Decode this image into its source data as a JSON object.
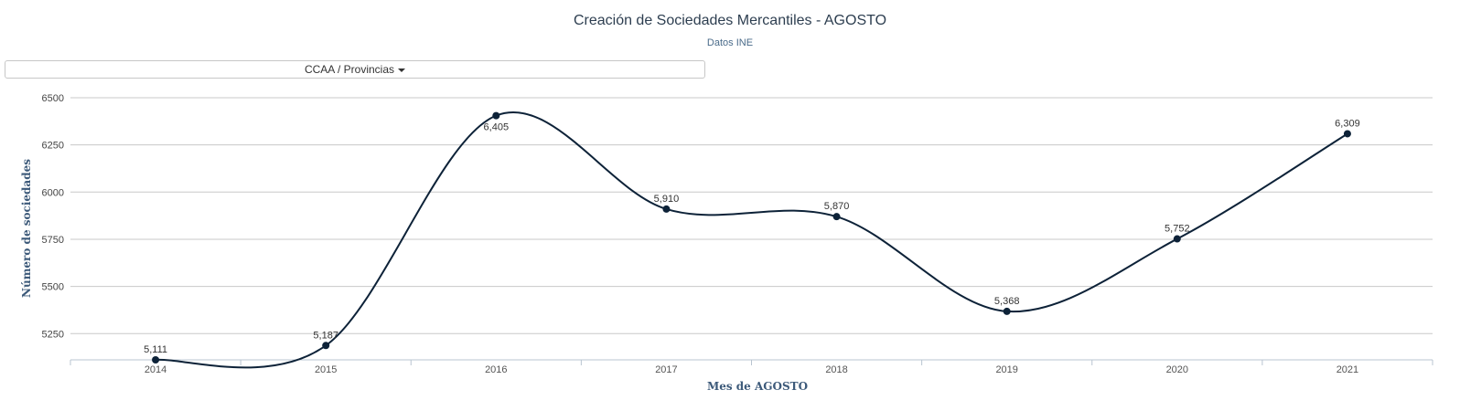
{
  "header": {
    "title": "Creación de Sociedades Mercantiles - AGOSTO",
    "subtitle": "Datos INE"
  },
  "filter": {
    "label": "CCAA / Provincias"
  },
  "chart_data": {
    "type": "line",
    "title": "Creación de Sociedades Mercantiles - AGOSTO",
    "subtitle": "Datos INE",
    "xlabel": "Mes de AGOSTO",
    "ylabel": "Número de sociedades",
    "categories": [
      "2014",
      "2015",
      "2016",
      "2017",
      "2018",
      "2019",
      "2020",
      "2021"
    ],
    "series": [
      {
        "values": [
          5111,
          5187,
          6405,
          5910,
          5870,
          5368,
          5752,
          6309
        ],
        "data_labels": [
          "5,111",
          "5,187",
          "6,405",
          "5,910",
          "5,870",
          "5,368",
          "5,752",
          "6,309"
        ]
      }
    ],
    "y_ticks": [
      5250,
      5500,
      5750,
      6000,
      6250,
      6500
    ],
    "y_tick_labels": [
      "5250",
      "5500",
      "5750",
      "6000",
      "6250",
      "6500"
    ],
    "ylim": [
      5111,
      6500
    ],
    "grid": true,
    "line_smoothing": "spline",
    "colors": {
      "line": "#0d2238",
      "marker": "#0d2238",
      "grid": "#c8c8c8"
    }
  }
}
